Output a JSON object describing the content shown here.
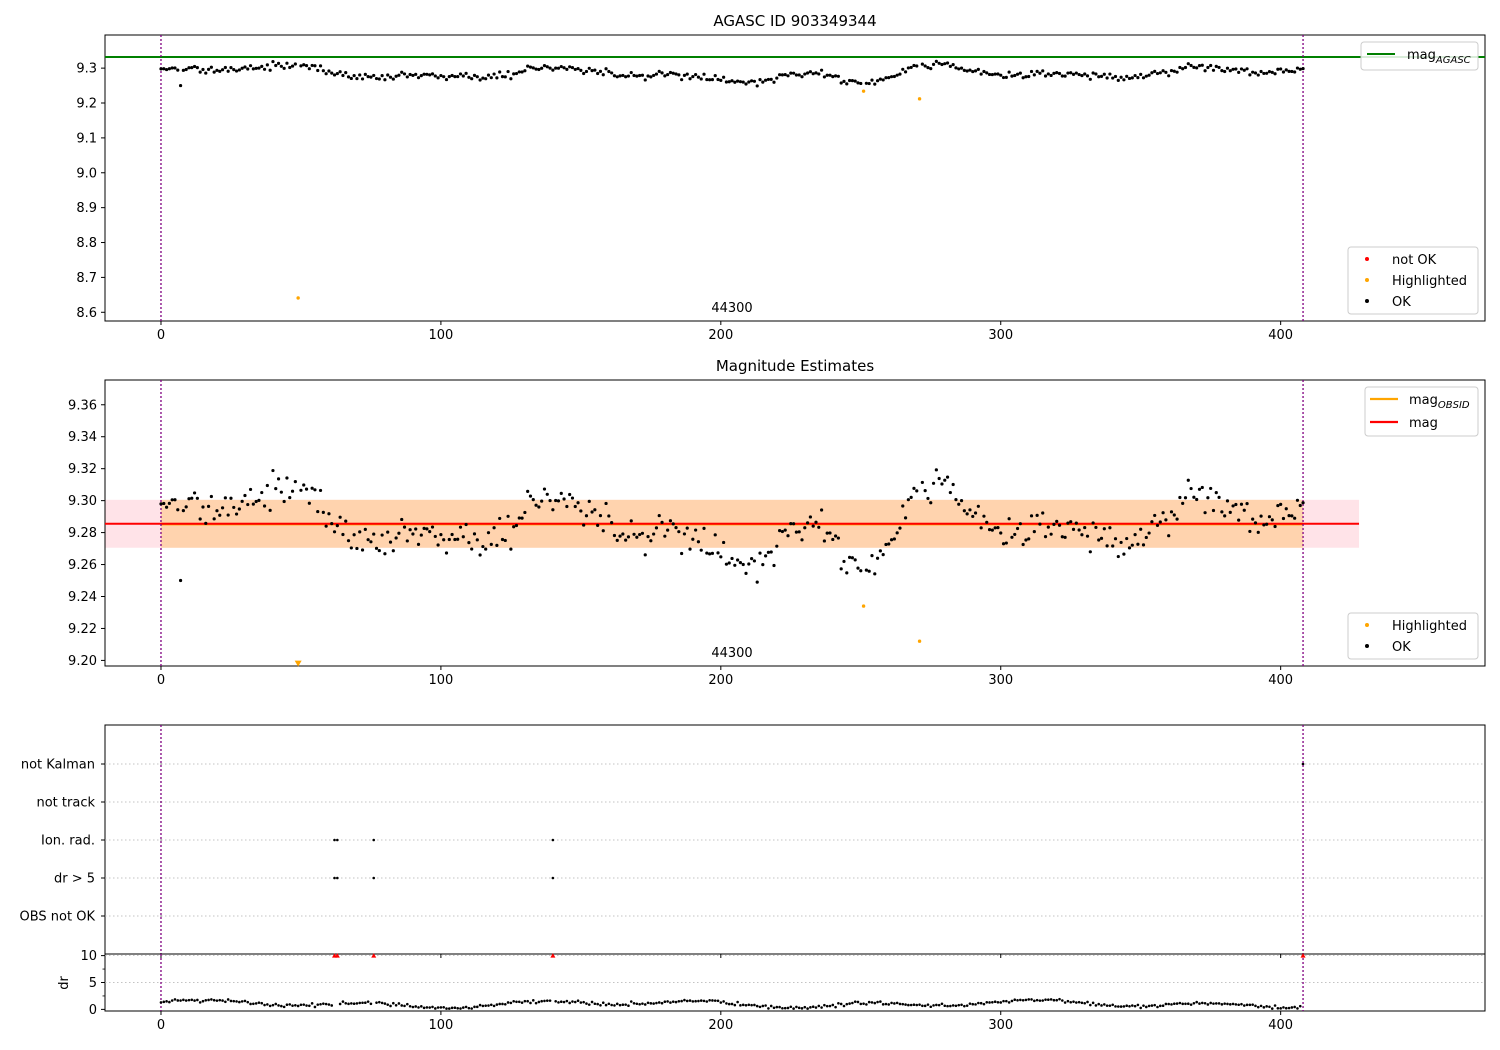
{
  "chart_data": [
    {
      "type": "scatter",
      "title": "AGASC ID 903349344",
      "xlim": [
        -20,
        473
      ],
      "ylim": [
        8.575,
        9.395
      ],
      "yticks": [
        8.6,
        8.7,
        8.8,
        8.9,
        9.0,
        9.1,
        9.2,
        9.3
      ],
      "ytick_labels": [
        "8.6",
        "8.7",
        "8.8",
        "8.9",
        "9.0",
        "9.1",
        "9.2",
        "9.3"
      ],
      "xticks": [
        0,
        100,
        200,
        300,
        400
      ],
      "xtick_labels": [
        "0",
        "100",
        "200",
        "300",
        "400"
      ],
      "reference_line": {
        "label": "mag",
        "subscript": "AGASC",
        "value": 9.332,
        "color": "#008000"
      },
      "obsid_boundaries": [
        0,
        408
      ],
      "obsid_label": {
        "text": "44300",
        "x": 204
      },
      "ok_series": {
        "label": "OK",
        "color": "#000000",
        "n": 408,
        "mean": 9.285,
        "dip_start": 236,
        "dip_end": 268,
        "dip_depth": 0.03
      },
      "highlighted_points": [
        [
          49,
          8.641
        ],
        [
          251,
          9.234
        ],
        [
          271,
          9.212
        ]
      ],
      "highlighted_color": "#ffa500",
      "not_ok_color": "#ff0000",
      "legends": [
        {
          "entries": [
            {
              "label": "mag",
              "subscript": "AGASC",
              "kind": "line",
              "color": "#008000"
            }
          ],
          "position": "upper right"
        },
        {
          "entries": [
            {
              "label": "not OK",
              "kind": "dot",
              "color": "#ff0000"
            },
            {
              "label": "Highlighted",
              "kind": "dot",
              "color": "#ffa500"
            },
            {
              "label": "OK",
              "kind": "dot",
              "color": "#000000"
            }
          ],
          "position": "lower right"
        }
      ]
    },
    {
      "type": "scatter",
      "title": "Magnitude Estimates",
      "xlim": [
        -20,
        473
      ],
      "ylim": [
        9.1965,
        9.3755
      ],
      "yticks": [
        9.2,
        9.22,
        9.24,
        9.26,
        9.28,
        9.3,
        9.32,
        9.34,
        9.36
      ],
      "ytick_labels": [
        "9.20",
        "9.22",
        "9.24",
        "9.26",
        "9.28",
        "9.30",
        "9.32",
        "9.34",
        "9.36"
      ],
      "xticks": [
        0,
        100,
        200,
        300,
        400
      ],
      "xtick_labels": [
        "0",
        "100",
        "200",
        "300",
        "400"
      ],
      "mag_line": {
        "label": "mag",
        "value": 9.2855,
        "color": "#ff0000"
      },
      "mag_obsid_line": {
        "label": "mag",
        "subscript": "OBSID",
        "value": 9.2853,
        "color": "#ffa500"
      },
      "mag_band": {
        "low": 9.2705,
        "high": 9.3005,
        "x_end": 428,
        "color": "#ffc0cb"
      },
      "obsid_band": {
        "low": 9.2705,
        "high": 9.3005,
        "x_start": 0,
        "x_end": 408,
        "color": "#ffa500"
      },
      "obsid_boundaries": [
        0,
        408
      ],
      "obsid_label": {
        "text": "44300",
        "x": 204
      },
      "ok_series": {
        "label": "OK",
        "color": "#000000"
      },
      "highlighted_points": [
        [
          251,
          9.234
        ],
        [
          271,
          9.212
        ]
      ],
      "highlighted_offscale_marker": {
        "x": 49,
        "value": 9.198
      },
      "highlighted_color": "#ffa500",
      "legends": [
        {
          "entries": [
            {
              "label": "mag",
              "subscript": "OBSID",
              "kind": "line",
              "color": "#ffa500"
            },
            {
              "label": "mag",
              "kind": "line",
              "color": "#ff0000"
            }
          ],
          "position": "upper right"
        },
        {
          "entries": [
            {
              "label": "Highlighted",
              "kind": "dot",
              "color": "#ffa500"
            },
            {
              "label": "OK",
              "kind": "dot",
              "color": "#000000"
            }
          ],
          "position": "lower right"
        }
      ]
    },
    {
      "type": "scatter",
      "title": "",
      "categories": [
        "not Kalman",
        "not track",
        "Ion. rad.",
        "dr > 5",
        "OBS not OK"
      ],
      "xlim": [
        -20,
        473
      ],
      "obsid_boundaries": [
        0,
        408
      ],
      "flags": {
        "not Kalman": [
          408
        ],
        "not track": [],
        "Ion. rad.": [
          62,
          63,
          76,
          140
        ],
        "dr > 5": [
          62,
          63,
          76,
          140
        ],
        "OBS not OK": []
      },
      "grid": true
    },
    {
      "type": "scatter",
      "title": "",
      "ylabel": "dr",
      "ylim": [
        -0.3,
        10.3
      ],
      "yticks": [
        0,
        5,
        10
      ],
      "ytick_labels": [
        "0",
        "5",
        "10"
      ],
      "xticks": [
        0,
        100,
        200,
        300,
        400
      ],
      "xtick_labels": [
        "0",
        "100",
        "200",
        "300",
        "400"
      ],
      "xlim": [
        -20,
        473
      ],
      "obsid_boundaries": [
        0,
        408
      ],
      "ok_series": {
        "color": "#000000",
        "mean": 1.0
      },
      "clipped_points": {
        "x": [
          62,
          63,
          76,
          140,
          408
        ],
        "value": 10,
        "color": "#ff0000"
      }
    }
  ]
}
